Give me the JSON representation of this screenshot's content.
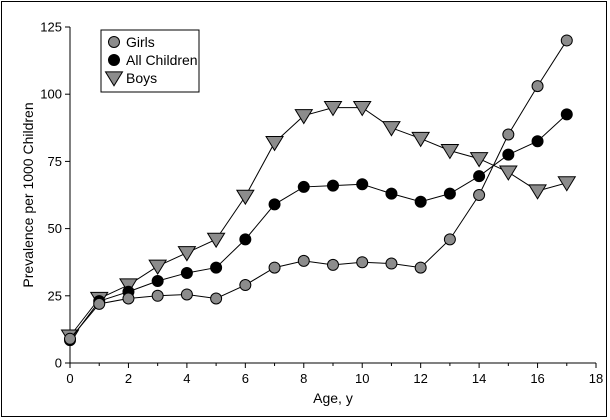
{
  "chart_data": {
    "type": "line",
    "xlabel": "Age, y",
    "ylabel": "Prevalence per 1000 Children",
    "xlim": [
      0,
      18
    ],
    "ylim": [
      0,
      125
    ],
    "x_ticks": [
      0,
      2,
      4,
      6,
      8,
      10,
      12,
      14,
      16,
      18
    ],
    "y_ticks": [
      0,
      25,
      50,
      75,
      100,
      125
    ],
    "grid": false,
    "legend_position": "top-left",
    "series": [
      {
        "name": "Girls",
        "marker": "circle",
        "color": "#8c8c8c",
        "x": [
          0,
          1,
          2,
          3,
          4,
          5,
          6,
          7,
          8,
          9,
          10,
          11,
          12,
          13,
          14,
          15,
          16,
          17
        ],
        "values": [
          9,
          22,
          24,
          25,
          25.5,
          24,
          29,
          35.5,
          38,
          36.5,
          37.5,
          37,
          35.5,
          46,
          62.5,
          85,
          103,
          120
        ]
      },
      {
        "name": "All Children",
        "marker": "circle",
        "color": "#000000",
        "x": [
          0,
          1,
          2,
          3,
          4,
          5,
          6,
          7,
          8,
          9,
          10,
          11,
          12,
          13,
          14,
          15,
          16,
          17
        ],
        "values": [
          8.5,
          23,
          26.5,
          30.5,
          33.5,
          35.5,
          46,
          59,
          65.5,
          66,
          66.5,
          63,
          60,
          63,
          69.5,
          77.5,
          82.5,
          92.5
        ]
      },
      {
        "name": "Boys",
        "marker": "triangle-down",
        "color": "#8c8c8c",
        "x": [
          0,
          1,
          2,
          3,
          4,
          5,
          6,
          7,
          8,
          9,
          10,
          11,
          12,
          13,
          14,
          15,
          16,
          17
        ],
        "values": [
          10,
          24,
          29,
          36,
          41,
          46,
          62,
          82,
          92,
          95,
          95,
          87.5,
          83.5,
          79,
          76,
          71,
          64,
          67
        ]
      }
    ]
  }
}
